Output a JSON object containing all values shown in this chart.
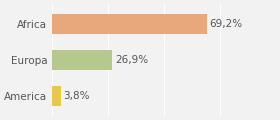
{
  "categories": [
    "America",
    "Europa",
    "Africa"
  ],
  "values": [
    3.8,
    26.9,
    69.2
  ],
  "labels": [
    "3,8%",
    "26,9%",
    "69,2%"
  ],
  "bar_colors": [
    "#e8c84a",
    "#b5c98e",
    "#e8a87c"
  ],
  "background_color": "#f2f2f2",
  "xlim": [
    0,
    100
  ],
  "label_fontsize": 7.5,
  "tick_fontsize": 7.5
}
